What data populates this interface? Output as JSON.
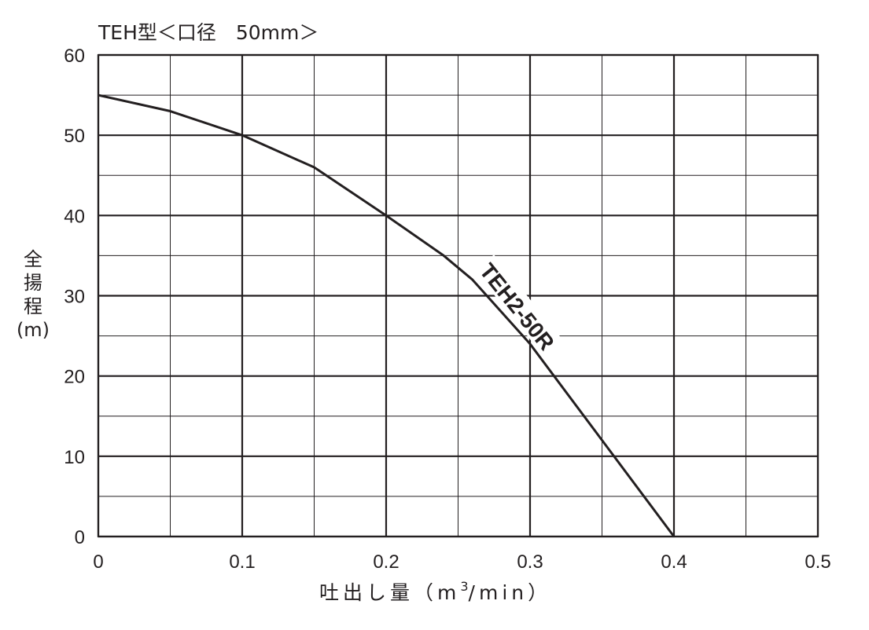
{
  "chart_data": {
    "type": "line",
    "title": "TEH型＜口径　50mm＞",
    "ylabel": "全\n揚\n程\n(m)",
    "xlabel_prefix": "吐出し量（m",
    "xlabel_sup": "3",
    "xlabel_suffix": "/min）",
    "xlim": [
      0,
      0.5
    ],
    "ylim": [
      0,
      60
    ],
    "x_ticks": [
      "0",
      "0.1",
      "0.2",
      "0.3",
      "0.4",
      "0.5"
    ],
    "y_ticks": [
      "0",
      "10",
      "20",
      "30",
      "40",
      "50",
      "60"
    ],
    "x_major_step": 0.1,
    "x_minor_step": 0.05,
    "y_major_step": 10,
    "y_minor_step": 5,
    "grid": true,
    "series": [
      {
        "name": "TEH2-50R",
        "x": [
          0,
          0.05,
          0.1,
          0.15,
          0.2,
          0.24,
          0.26,
          0.3,
          0.35,
          0.4
        ],
        "y": [
          55,
          53,
          50,
          46,
          40,
          35,
          32,
          24,
          12,
          0
        ]
      }
    ],
    "colors": {
      "line": "#231f20",
      "grid": "#231f20",
      "background": "#ffffff"
    }
  }
}
